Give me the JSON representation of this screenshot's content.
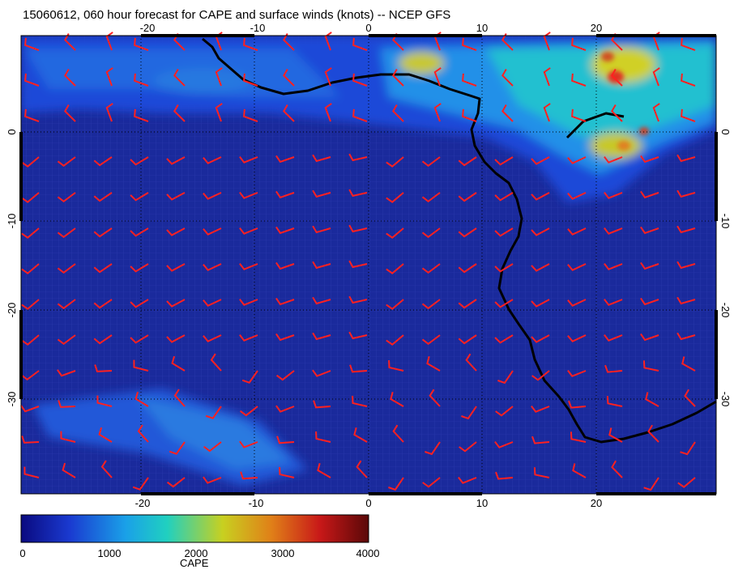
{
  "title": "15060612, 060 hour forecast for CAPE and surface winds (knots) -- NCEP GFS",
  "colors": {
    "wind_barb": "#ff2020",
    "coastline": "#000000",
    "ocean_base": "#1a2a9c",
    "grid_line": "#5a66c8"
  },
  "map": {
    "lon_range": [
      -30,
      30
    ],
    "lat_range": [
      -40,
      10
    ],
    "lon_ticks": [
      "-20",
      "-10",
      "0",
      "10",
      "20"
    ],
    "lat_ticks": [
      "0",
      "-10",
      "-20",
      "-30"
    ],
    "lon_tick_values": [
      -20,
      -10,
      0,
      10,
      20
    ],
    "lat_tick_values": [
      0,
      -10,
      -20,
      -30
    ]
  },
  "colorbar": {
    "label": "CAPE",
    "ticks": [
      "0",
      "1000",
      "2000",
      "3000",
      "4000"
    ],
    "range": [
      0,
      4000
    ],
    "stops": [
      "#0a0a80",
      "#1a3ad0",
      "#1aa0e8",
      "#20d0c0",
      "#c8d020",
      "#e08018",
      "#c81818",
      "#5a0808"
    ]
  }
}
